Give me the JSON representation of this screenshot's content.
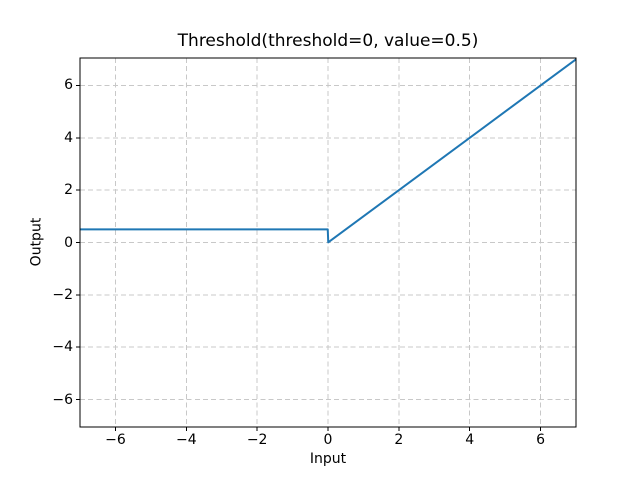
{
  "figure": {
    "background": "#ffffff"
  },
  "chart_data": {
    "type": "line",
    "title": "Threshold(threshold=0, value=0.5)",
    "xlabel": "Input",
    "ylabel": "Output",
    "xlim": [
      -7,
      7
    ],
    "ylim": [
      -7.05,
      7.05
    ],
    "xticks": [
      -6,
      -4,
      -2,
      0,
      2,
      4,
      6
    ],
    "yticks": [
      -6,
      -4,
      -2,
      0,
      2,
      4,
      6
    ],
    "xtick_labels": [
      "−6",
      "−4",
      "−2",
      "0",
      "2",
      "4",
      "6"
    ],
    "ytick_labels": [
      "−6",
      "−4",
      "−2",
      "0",
      "2",
      "4",
      "6"
    ],
    "grid": true,
    "grid_style": "dashed",
    "grid_color": "#c8c8c8",
    "axis_color": "#000000",
    "legend": "none",
    "series": [
      {
        "name": "threshold",
        "color": "#1f77b4",
        "points": [
          [
            -7,
            0.5
          ],
          [
            -0.007,
            0.5
          ],
          [
            0.007,
            0.007
          ],
          [
            7,
            7
          ]
        ]
      }
    ]
  }
}
